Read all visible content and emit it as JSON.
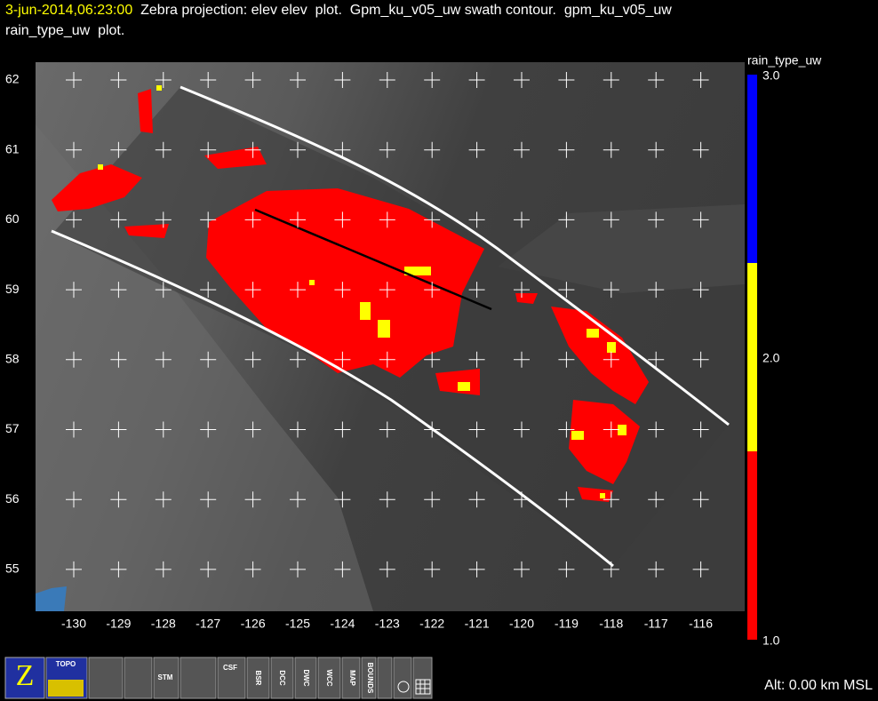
{
  "header": {
    "time": "3-jun-2014,06:23:00",
    "line1": "  Zebra projection: elev elev  plot.  Gpm_ku_v05_uw swath contour.  gpm_ku_v05_uw",
    "line2": "rain_type_uw  plot."
  },
  "map": {
    "lat_labels": [
      "62",
      "61",
      "60",
      "59",
      "58",
      "57",
      "56",
      "55"
    ],
    "lon_labels": [
      "-130",
      "-129",
      "-128",
      "-127",
      "-126",
      "-125",
      "-124",
      "-123",
      "-122",
      "-121",
      "-120",
      "-119",
      "-118",
      "-117",
      "-116"
    ]
  },
  "colorbar": {
    "title": "rain_type_uw",
    "labels": [
      "3.0",
      "2.0",
      "1.0"
    ],
    "colors": [
      "#0000ff",
      "#ffff00",
      "#ff0000"
    ]
  },
  "toolbar": {
    "items": [
      "TOPO",
      "STM",
      "CSF",
      "BSR",
      "DCC",
      "DWC",
      "WCC",
      "MAP",
      "BOUNDS"
    ]
  },
  "status": {
    "altitude": "Alt: 0.00 km MSL"
  }
}
